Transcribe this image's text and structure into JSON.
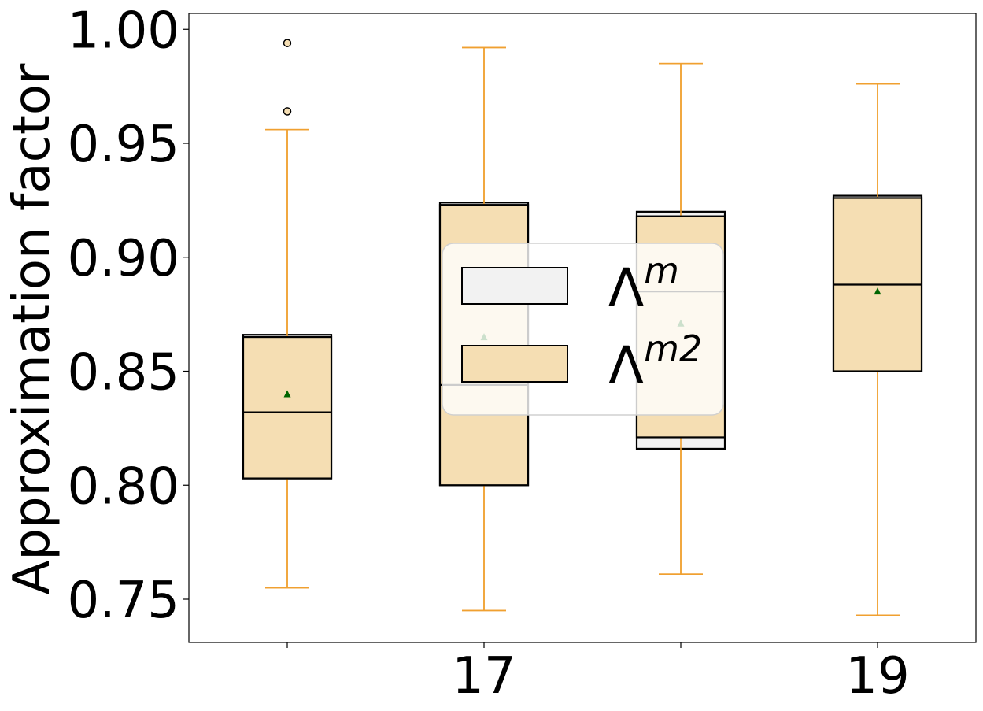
{
  "chart_data": {
    "type": "box",
    "ylabel": "Approximation factor",
    "ylim": [
      0.731,
      1.007
    ],
    "yticks": [
      "0.75",
      "0.80",
      "0.85",
      "0.90",
      "0.95",
      "1.00"
    ],
    "x_positions": [
      16,
      17,
      18,
      19
    ],
    "x_ticklabels": [
      "",
      "17",
      "",
      "19"
    ],
    "legend": {
      "placement": "center",
      "entries": [
        {
          "label_base": "Λ",
          "label_sup": "m",
          "fill": "#f2f2f2"
        },
        {
          "label_base": "Λ",
          "label_sup": "m2",
          "fill": "#f5deb3"
        }
      ]
    },
    "series": [
      {
        "name": "Λm",
        "fill": "#f2f2f2",
        "boxes": [
          {
            "x": 16,
            "q1": 0.803,
            "median": 0.832,
            "q3": 0.866,
            "whisker_low": 0.755,
            "whisker_high": 0.956,
            "mean": 0.84,
            "outliers": [
              0.994,
              0.964
            ]
          },
          {
            "x": 17,
            "q1": 0.8,
            "median": 0.844,
            "q3": 0.924,
            "whisker_low": 0.745,
            "whisker_high": 0.992,
            "mean": 0.865,
            "outliers": []
          },
          {
            "x": 18,
            "q1": 0.816,
            "median": 0.885,
            "q3": 0.92,
            "whisker_low": 0.761,
            "whisker_high": 0.985,
            "mean": 0.871,
            "outliers": []
          },
          {
            "x": 19,
            "q1": 0.85,
            "median": 0.888,
            "q3": 0.927,
            "whisker_low": 0.743,
            "whisker_high": 0.976,
            "mean": 0.885,
            "outliers": []
          }
        ]
      },
      {
        "name": "Λm2",
        "fill": "#f5deb3",
        "boxes": [
          {
            "x": 16,
            "q1": 0.803,
            "median": 0.832,
            "q3": 0.865,
            "whisker_low": 0.755,
            "whisker_high": 0.956,
            "mean": 0.84,
            "outliers": [
              0.994,
              0.964
            ]
          },
          {
            "x": 17,
            "q1": 0.8,
            "median": 0.844,
            "q3": 0.923,
            "whisker_low": 0.745,
            "whisker_high": 0.992,
            "mean": 0.865,
            "outliers": []
          },
          {
            "x": 18,
            "q1": 0.821,
            "median": 0.885,
            "q3": 0.918,
            "whisker_low": 0.761,
            "whisker_high": 0.985,
            "mean": 0.871,
            "outliers": []
          },
          {
            "x": 19,
            "q1": 0.85,
            "median": 0.888,
            "q3": 0.926,
            "whisker_low": 0.743,
            "whisker_high": 0.976,
            "mean": 0.885,
            "outliers": []
          }
        ]
      }
    ],
    "colors": {
      "whisker": "#f0a030",
      "mean_marker": "#006400",
      "box_edge": "#000000",
      "outlier_fill": "#f5deb3"
    },
    "grid": false
  }
}
